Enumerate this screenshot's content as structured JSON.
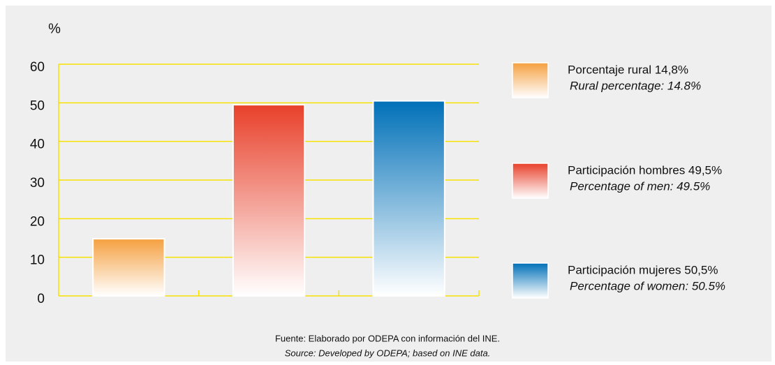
{
  "chart_data": {
    "type": "bar",
    "y_label": "%",
    "categories": [
      null,
      null,
      null
    ],
    "values": [
      14.8,
      49.5,
      50.5
    ],
    "colors": [
      "#f5a040",
      "#e8402a",
      "#0070b8"
    ],
    "legend": [
      {
        "label": "Porcentaje rural 14,8%",
        "label_en": "Rural percentage: 14.8%"
      },
      {
        "label": "Participación hombres 49,5%",
        "label_en": "Percentage of men: 49.5%"
      },
      {
        "label": "Participación mujeres 50,5%",
        "label_en": "Percentage of women: 50.5%"
      }
    ],
    "ylim": [
      0,
      60
    ],
    "yticks": [
      0,
      10,
      20,
      30,
      40,
      50,
      60
    ],
    "grid": true,
    "grid_color": "#f5e000",
    "source": [
      "Fuente: Elaborado por ODEPA con información del INE.",
      "Source: Developed by ODEPA; based on INE data."
    ]
  }
}
